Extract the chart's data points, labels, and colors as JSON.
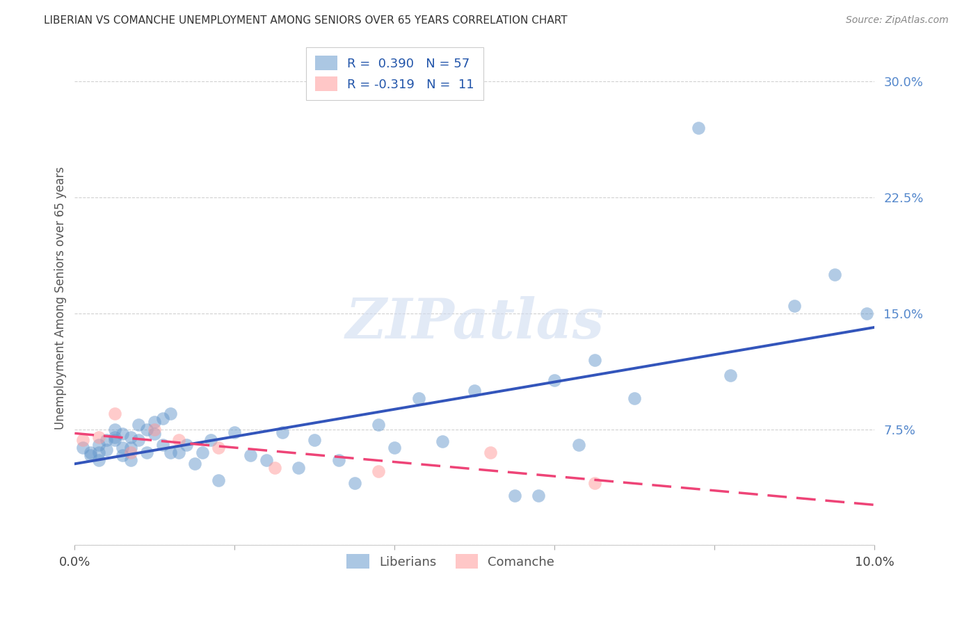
{
  "title": "LIBERIAN VS COMANCHE UNEMPLOYMENT AMONG SENIORS OVER 65 YEARS CORRELATION CHART",
  "source": "Source: ZipAtlas.com",
  "ylabel": "Unemployment Among Seniors over 65 years",
  "xlim": [
    0.0,
    0.1
  ],
  "ylim": [
    0.0,
    0.32
  ],
  "xticks": [
    0.0,
    0.02,
    0.04,
    0.06,
    0.08,
    0.1
  ],
  "yticks": [
    0.0,
    0.075,
    0.15,
    0.225,
    0.3
  ],
  "ytick_labels": [
    "",
    "7.5%",
    "15.0%",
    "22.5%",
    "30.0%"
  ],
  "xtick_labels": [
    "0.0%",
    "",
    "",
    "",
    "",
    "10.0%"
  ],
  "liberian_R": 0.39,
  "liberian_N": 57,
  "comanche_R": -0.319,
  "comanche_N": 11,
  "liberian_color": "#6699CC",
  "comanche_color": "#FF9999",
  "trendline_liberian_color": "#3355BB",
  "trendline_comanche_color": "#EE4477",
  "background_color": "#FFFFFF",
  "watermark": "ZIPatlas",
  "liberian_x": [
    0.001,
    0.002,
    0.002,
    0.003,
    0.003,
    0.003,
    0.004,
    0.004,
    0.005,
    0.005,
    0.005,
    0.006,
    0.006,
    0.006,
    0.007,
    0.007,
    0.007,
    0.008,
    0.008,
    0.009,
    0.009,
    0.01,
    0.01,
    0.011,
    0.011,
    0.012,
    0.012,
    0.013,
    0.014,
    0.015,
    0.016,
    0.017,
    0.018,
    0.02,
    0.022,
    0.024,
    0.026,
    0.028,
    0.03,
    0.033,
    0.035,
    0.038,
    0.04,
    0.043,
    0.046,
    0.05,
    0.055,
    0.058,
    0.06,
    0.063,
    0.065,
    0.07,
    0.078,
    0.082,
    0.09,
    0.095,
    0.099
  ],
  "liberian_y": [
    0.063,
    0.06,
    0.058,
    0.065,
    0.06,
    0.055,
    0.068,
    0.062,
    0.07,
    0.075,
    0.068,
    0.063,
    0.058,
    0.072,
    0.07,
    0.063,
    0.055,
    0.078,
    0.068,
    0.075,
    0.06,
    0.08,
    0.072,
    0.082,
    0.065,
    0.085,
    0.06,
    0.06,
    0.065,
    0.053,
    0.06,
    0.068,
    0.042,
    0.073,
    0.058,
    0.055,
    0.073,
    0.05,
    0.068,
    0.055,
    0.04,
    0.078,
    0.063,
    0.095,
    0.067,
    0.1,
    0.032,
    0.032,
    0.107,
    0.065,
    0.12,
    0.095,
    0.27,
    0.11,
    0.155,
    0.175,
    0.15
  ],
  "comanche_x": [
    0.001,
    0.003,
    0.005,
    0.007,
    0.01,
    0.013,
    0.018,
    0.025,
    0.038,
    0.052,
    0.065
  ],
  "comanche_y": [
    0.068,
    0.07,
    0.085,
    0.06,
    0.075,
    0.068,
    0.063,
    0.05,
    0.048,
    0.06,
    0.04
  ]
}
